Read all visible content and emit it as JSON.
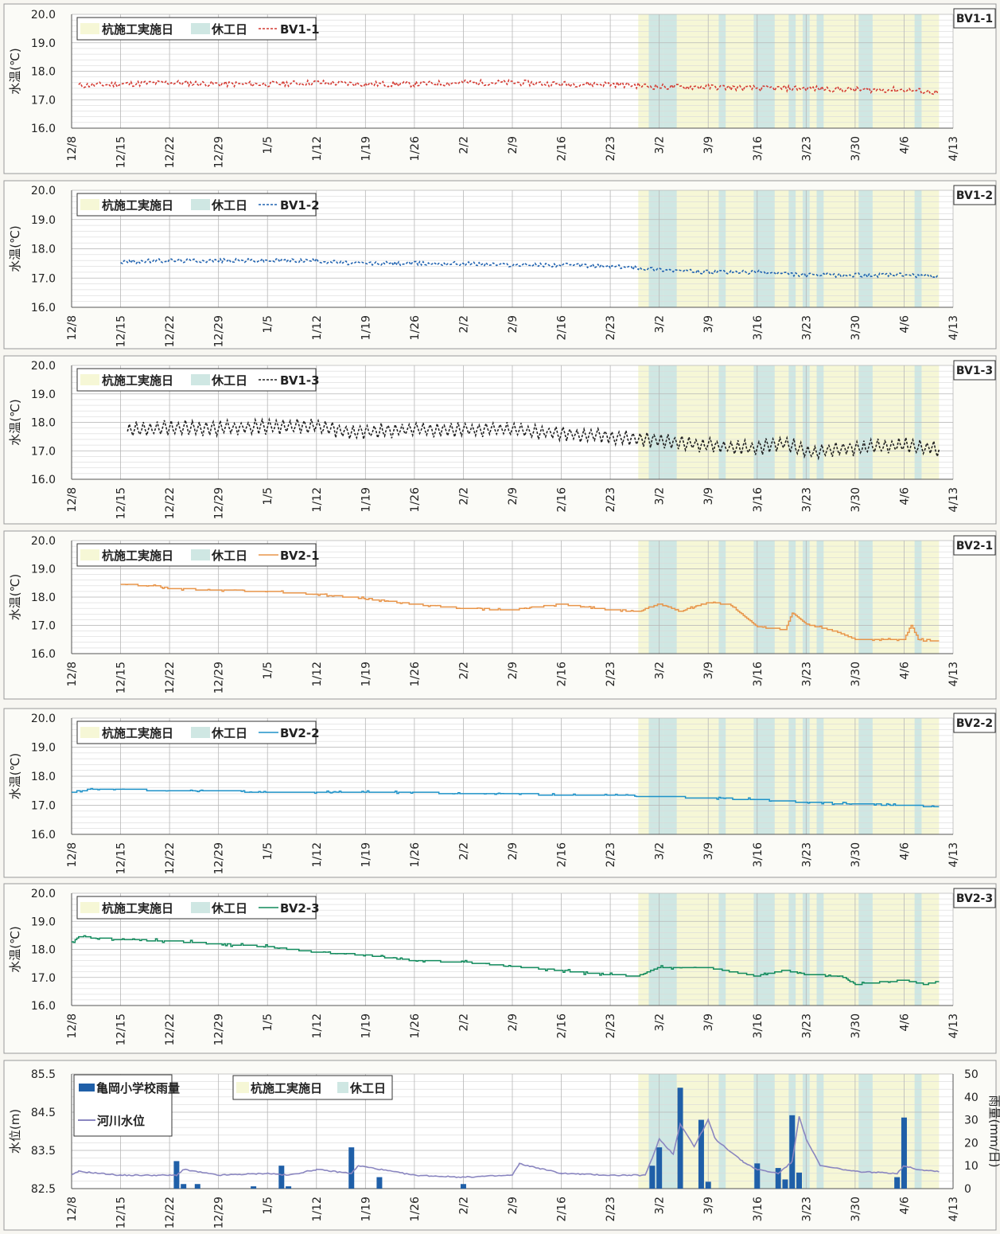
{
  "colors": {
    "work_period": "#f6f7d6",
    "holiday": "#cfe7e3",
    "rain_bar": "#1f5fa8",
    "river": "#8a86c0",
    "BV1-1": "#d43a32",
    "BV1-2": "#1f62b0",
    "BV1-3": "#222222",
    "BV2-1": "#e8954a",
    "BV2-2": "#1e92c8",
    "BV2-3": "#118a5c"
  },
  "legend": {
    "work_day": "杭施工実施日",
    "holiday": "休工日",
    "rain": "亀岡小学校雨量",
    "river": "河川水位"
  },
  "x_axis": {
    "ticks": [
      "12/8",
      "12/15",
      "12/22",
      "12/29",
      "1/5",
      "1/12",
      "1/19",
      "1/26",
      "2/2",
      "2/9",
      "2/16",
      "2/23",
      "3/2",
      "3/9",
      "3/16",
      "3/23",
      "3/30",
      "4/6",
      "4/13"
    ],
    "range": [
      "12/8",
      "4/13"
    ]
  },
  "work_period": {
    "start": "2/27",
    "end": "4/11"
  },
  "holidays": [
    [
      "3/1",
      "3/2"
    ],
    [
      "3/3",
      "3/4"
    ],
    [
      "3/11",
      "3/11"
    ],
    [
      "3/16",
      "3/18"
    ],
    [
      "3/21",
      "3/21"
    ],
    [
      "3/23",
      "3/23"
    ],
    [
      "3/25",
      "3/25"
    ],
    [
      "3/31",
      "4/1"
    ],
    [
      "4/8",
      "4/8"
    ]
  ],
  "chart_data": [
    {
      "type": "line",
      "id": "BV1-1",
      "tag": "BV1-1",
      "ylabel": "水温(℃)",
      "ylim": [
        16.0,
        20.0
      ],
      "yticks": [
        "20.0",
        "19.0",
        "18.0",
        "17.0",
        "16.0"
      ],
      "line_style": "dashed",
      "legend_position": "top-left",
      "series": [
        {
          "name": "BV1-1",
          "x": [
            "12/9",
            "12/15",
            "12/22",
            "12/29",
            "1/5",
            "1/12",
            "1/19",
            "1/26",
            "2/2",
            "2/9",
            "2/16",
            "2/23",
            "2/27",
            "3/2",
            "3/9",
            "3/16",
            "3/23",
            "3/30",
            "4/6",
            "4/11"
          ],
          "y": [
            17.5,
            17.55,
            17.6,
            17.55,
            17.55,
            17.6,
            17.55,
            17.55,
            17.6,
            17.6,
            17.55,
            17.55,
            17.5,
            17.45,
            17.45,
            17.4,
            17.4,
            17.35,
            17.35,
            17.25
          ],
          "noise": 0.1
        }
      ]
    },
    {
      "type": "line",
      "id": "BV1-2",
      "tag": "BV1-2",
      "ylabel": "水温(℃)",
      "ylim": [
        16.0,
        20.0
      ],
      "yticks": [
        "20.0",
        "19.0",
        "18.0",
        "17.0",
        "16.0"
      ],
      "line_style": "dashed",
      "legend_position": "top-left",
      "series": [
        {
          "name": "BV1-2",
          "x": [
            "12/15",
            "12/22",
            "12/29",
            "1/5",
            "1/12",
            "1/17",
            "1/26",
            "2/2",
            "2/9",
            "2/16",
            "2/23",
            "2/27",
            "3/2",
            "3/9",
            "3/16",
            "3/20",
            "3/23",
            "3/30",
            "4/6",
            "4/11"
          ],
          "y": [
            17.55,
            17.6,
            17.6,
            17.6,
            17.6,
            17.5,
            17.5,
            17.5,
            17.45,
            17.45,
            17.4,
            17.35,
            17.3,
            17.2,
            17.2,
            17.15,
            17.1,
            17.1,
            17.1,
            17.05
          ],
          "noise": 0.07
        }
      ]
    },
    {
      "type": "line",
      "id": "BV1-3",
      "tag": "BV1-3",
      "ylabel": "水温(℃)",
      "ylim": [
        16.0,
        20.0
      ],
      "yticks": [
        "20.0",
        "19.0",
        "18.0",
        "17.0",
        "16.0"
      ],
      "line_style": "dashed",
      "legend_position": "top-left",
      "series": [
        {
          "name": "BV1-3",
          "x": [
            "12/16",
            "12/22",
            "12/29",
            "1/5",
            "1/12",
            "1/17",
            "1/26",
            "2/2",
            "2/9",
            "2/16",
            "2/23",
            "3/2",
            "3/9",
            "3/16",
            "3/20",
            "3/23",
            "3/30",
            "4/6",
            "4/11"
          ],
          "y": [
            17.75,
            17.8,
            17.8,
            17.85,
            17.85,
            17.65,
            17.75,
            17.75,
            17.75,
            17.6,
            17.5,
            17.35,
            17.2,
            17.1,
            17.3,
            16.95,
            17.1,
            17.2,
            17.05
          ],
          "noise": 0.35
        }
      ]
    },
    {
      "type": "line",
      "id": "BV2-1",
      "tag": "BV2-1",
      "ylabel": "水温(℃)",
      "ylim": [
        16.0,
        20.0
      ],
      "yticks": [
        "20.0",
        "19.0",
        "18.0",
        "17.0",
        "16.0"
      ],
      "line_style": "solid",
      "legend_position": "top-left",
      "series": [
        {
          "name": "BV2-1",
          "x": [
            "12/15",
            "12/20",
            "12/22",
            "12/29",
            "1/5",
            "1/12",
            "1/19",
            "1/26",
            "2/2",
            "2/9",
            "2/16",
            "2/23",
            "2/27",
            "3/2",
            "3/5",
            "3/9",
            "3/12",
            "3/16",
            "3/20",
            "3/21",
            "3/23",
            "3/27",
            "3/30",
            "4/6",
            "4/7",
            "4/8",
            "4/11"
          ],
          "y": [
            18.45,
            18.4,
            18.3,
            18.25,
            18.2,
            18.1,
            17.95,
            17.75,
            17.6,
            17.55,
            17.75,
            17.55,
            17.5,
            17.75,
            17.5,
            17.8,
            17.75,
            16.95,
            16.85,
            17.45,
            17.05,
            16.8,
            16.5,
            16.5,
            17.0,
            16.5,
            16.45
          ],
          "noise": 0.03
        }
      ]
    },
    {
      "type": "line",
      "id": "BV2-2",
      "tag": "BV2-2",
      "ylabel": "水温(℃)",
      "ylim": [
        16.0,
        20.0
      ],
      "yticks": [
        "20.0",
        "19.0",
        "18.0",
        "17.0",
        "16.0"
      ],
      "line_style": "solid",
      "legend_position": "top-left",
      "series": [
        {
          "name": "BV2-2",
          "x": [
            "12/8",
            "12/11",
            "12/15",
            "12/22",
            "12/29",
            "1/5",
            "1/12",
            "1/19",
            "1/26",
            "2/2",
            "2/9",
            "2/16",
            "2/23",
            "3/2",
            "3/9",
            "3/16",
            "3/23",
            "3/30",
            "4/6",
            "4/11"
          ],
          "y": [
            17.45,
            17.55,
            17.55,
            17.5,
            17.5,
            17.45,
            17.45,
            17.45,
            17.45,
            17.4,
            17.4,
            17.35,
            17.35,
            17.3,
            17.25,
            17.2,
            17.1,
            17.05,
            17.0,
            16.95
          ],
          "noise": 0.03
        }
      ]
    },
    {
      "type": "line",
      "id": "BV2-3",
      "tag": "BV2-3",
      "ylabel": "水温(℃)",
      "ylim": [
        16.0,
        20.0
      ],
      "yticks": [
        "20.0",
        "19.0",
        "18.0",
        "17.0",
        "16.0"
      ],
      "line_style": "solid",
      "legend_position": "top-left",
      "series": [
        {
          "name": "BV2-3",
          "x": [
            "12/8",
            "12/9",
            "12/15",
            "12/22",
            "12/29",
            "1/5",
            "1/12",
            "1/19",
            "1/26",
            "2/2",
            "2/9",
            "2/16",
            "2/23",
            "2/27",
            "3/2",
            "3/9",
            "3/16",
            "3/20",
            "3/23",
            "3/28",
            "3/30",
            "4/6",
            "4/9",
            "4/11"
          ],
          "y": [
            18.2,
            18.45,
            18.35,
            18.3,
            18.2,
            18.1,
            17.9,
            17.8,
            17.6,
            17.55,
            17.4,
            17.25,
            17.1,
            17.05,
            17.35,
            17.35,
            17.05,
            17.25,
            17.1,
            17.05,
            16.75,
            16.9,
            16.75,
            16.85
          ],
          "noise": 0.05
        }
      ]
    },
    {
      "type": "bar+line",
      "id": "rain-river",
      "ylabel": "水位(m)",
      "y2label": "雨量(mm/日)",
      "ylim": [
        82.5,
        85.5
      ],
      "yticks": [
        "85.5",
        "84.5",
        "83.5",
        "82.5"
      ],
      "y2lim": [
        0,
        50
      ],
      "y2ticks": [
        "50",
        "40",
        "30",
        "20",
        "10",
        "0"
      ],
      "legend_position": "top-left",
      "rain": {
        "name": "亀岡小学校雨量",
        "dates": [
          "12/23",
          "12/24",
          "12/26",
          "1/3",
          "1/7",
          "1/8",
          "1/17",
          "1/21",
          "2/2",
          "3/1",
          "3/2",
          "3/5",
          "3/8",
          "3/9",
          "3/16",
          "3/19",
          "3/20",
          "3/21",
          "3/22",
          "4/5",
          "4/6"
        ],
        "values": [
          12,
          2,
          2,
          1,
          10,
          1,
          18,
          5,
          2,
          10,
          18,
          44,
          30,
          3,
          11,
          9,
          4,
          32,
          7,
          5,
          31
        ]
      },
      "river": {
        "name": "河川水位",
        "x": [
          "12/8",
          "12/9",
          "12/15",
          "12/22",
          "12/23",
          "12/24",
          "12/29",
          "1/5",
          "1/8",
          "1/12",
          "1/17",
          "1/18",
          "1/26",
          "2/2",
          "2/9",
          "2/10",
          "2/16",
          "2/23",
          "2/28",
          "3/1",
          "3/2",
          "3/4",
          "3/5",
          "3/7",
          "3/9",
          "3/10",
          "3/14",
          "3/16",
          "3/19",
          "3/21",
          "3/22",
          "3/23",
          "3/25",
          "3/30",
          "4/5",
          "4/6",
          "4/8",
          "4/11"
        ],
        "y": [
          82.85,
          82.95,
          82.85,
          82.85,
          82.85,
          83.0,
          82.85,
          82.9,
          82.85,
          83.0,
          82.9,
          83.1,
          82.85,
          82.8,
          82.85,
          83.15,
          82.9,
          82.85,
          82.85,
          83.3,
          83.8,
          83.4,
          84.2,
          83.6,
          84.3,
          83.8,
          83.2,
          83.0,
          82.9,
          83.2,
          84.4,
          83.8,
          83.1,
          82.95,
          82.9,
          83.1,
          83.0,
          82.95
        ]
      }
    }
  ]
}
